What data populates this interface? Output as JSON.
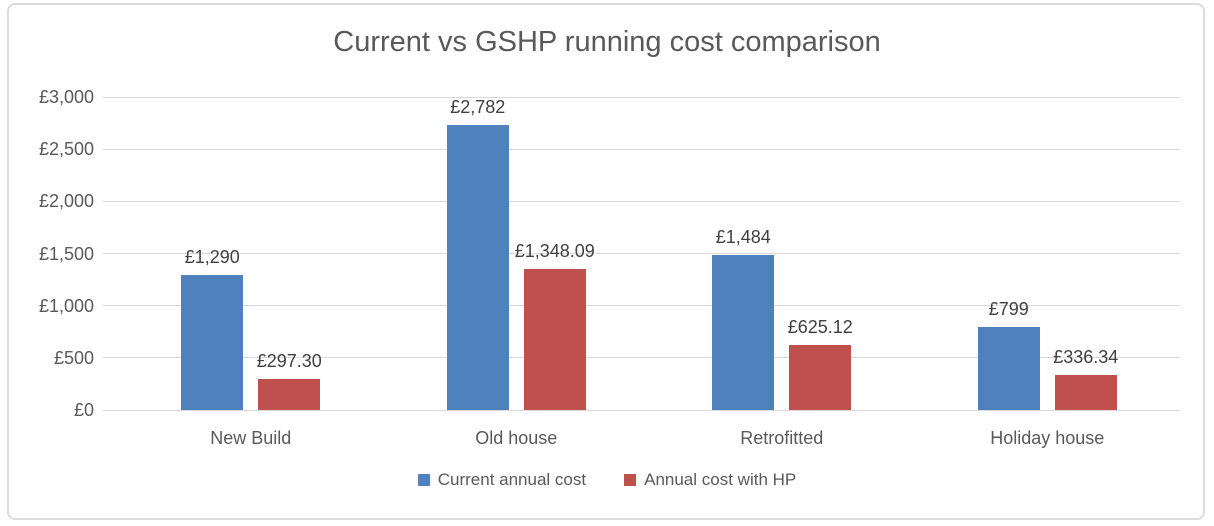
{
  "chart_data": {
    "type": "bar",
    "title": "Current vs GSHP running cost comparison",
    "categories": [
      "New Build",
      "Old house",
      "Retrofitted",
      "Holiday house"
    ],
    "series": [
      {
        "name": "Current annual cost",
        "color": "#4F81BD",
        "values": [
          1290,
          2782,
          1484,
          799
        ],
        "labels": [
          "£1,290",
          "£2,782",
          "£1,484",
          "£799"
        ]
      },
      {
        "name": "Annual cost with HP",
        "color": "#C0504D",
        "values": [
          297.3,
          1348.09,
          625.12,
          336.34
        ],
        "labels": [
          "£297.30",
          "£1,348.09",
          "£625.12",
          "£336.34"
        ]
      }
    ],
    "xlabel": "",
    "ylabel": "",
    "y_axis": {
      "min": 0,
      "max": 3000,
      "step": 500,
      "tick_labels": [
        "£0",
        "£500",
        "£1,000",
        "£1,500",
        "£2,000",
        "£2,500",
        "£3,000"
      ]
    },
    "grid": true,
    "legend_position": "bottom",
    "style": {
      "gridline_color": "#D9D9D9",
      "axis_text_color": "#595959",
      "data_label_color": "#404040",
      "title_color": "#595959",
      "border_color": "#DCDCDC",
      "background": "#FFFFFF"
    }
  }
}
